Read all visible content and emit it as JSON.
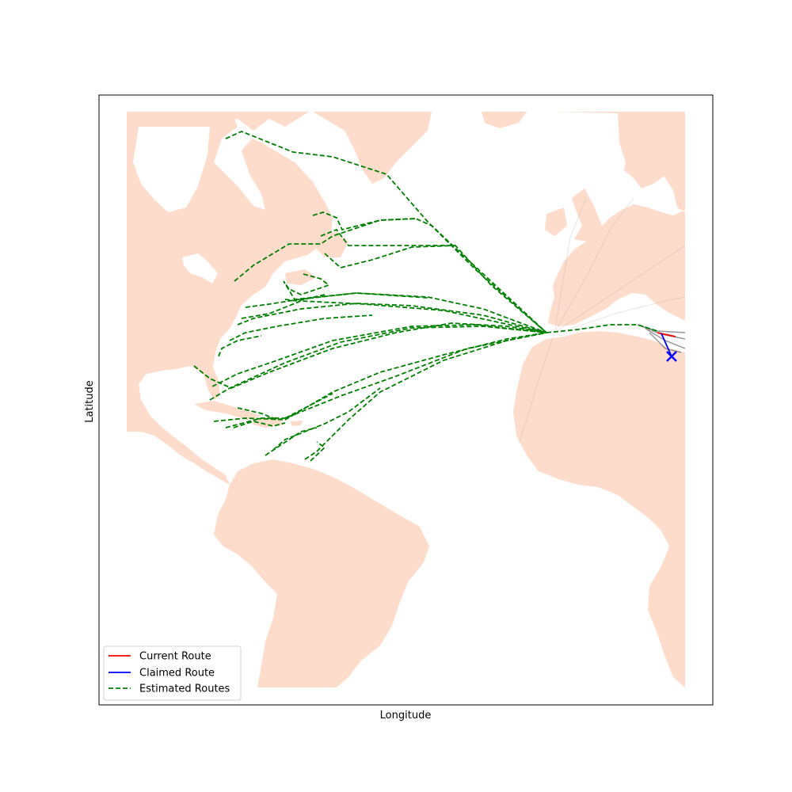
{
  "plot": {
    "xlabel": "Longitude",
    "ylabel": "Latitude"
  },
  "colors": {
    "land": "#fddccc",
    "current_route": "#ff0000",
    "claimed_route": "#0000ff",
    "estimated_routes": "#008000",
    "background_traffic": "#9e9e9e"
  },
  "legend": {
    "location": "lower-left",
    "entries": [
      {
        "label": "Current Route",
        "style": "solid",
        "color": "#ff0000"
      },
      {
        "label": "Claimed Route",
        "style": "solid",
        "color": "#0000ff"
      },
      {
        "label": "Estimated Routes",
        "style": "dashed",
        "color": "#008000"
      }
    ]
  },
  "markers": [
    {
      "name": "claimed-destination",
      "symbol": "x",
      "color": "#0000ff"
    }
  ]
}
